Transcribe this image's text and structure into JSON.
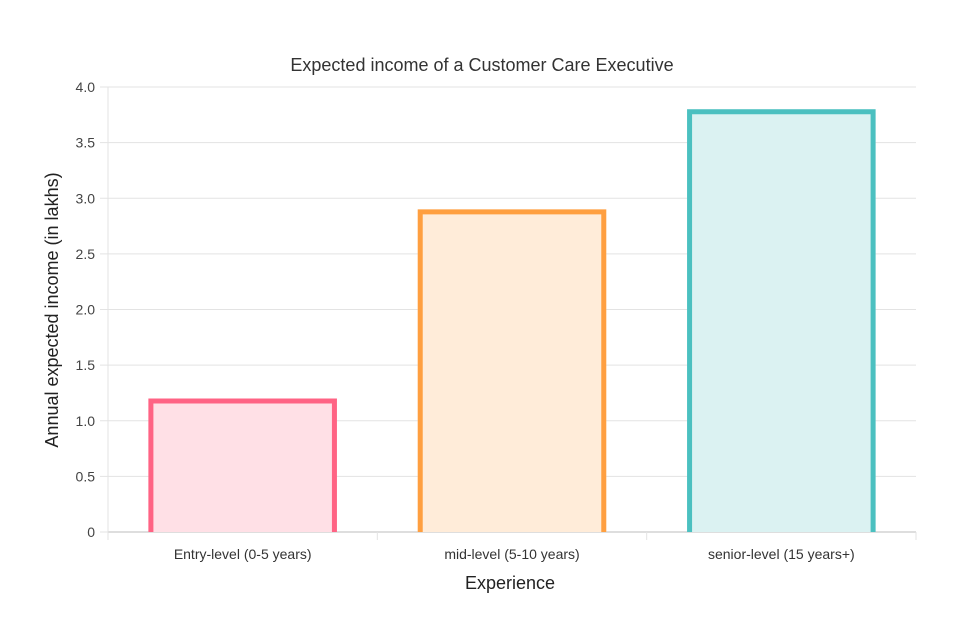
{
  "chart_data": {
    "type": "bar",
    "title": "Expected income of a Customer Care Executive",
    "xlabel": "Experience",
    "ylabel": "Annual expected income (in lakhs)",
    "categories": [
      "Entry-level (0-5 years)",
      "mid-level (5-10 years)",
      "senior-level (15 years+)"
    ],
    "values": [
      1.2,
      2.9,
      3.8
    ],
    "ylim": [
      0,
      4.0
    ],
    "yticks": [
      "0",
      "0.5",
      "1.0",
      "1.5",
      "2.0",
      "2.5",
      "3.0",
      "3.5",
      "4.0"
    ],
    "grid": true,
    "legend": "none",
    "colors": {
      "borders": [
        "#ff6384",
        "#ff9f40",
        "#4bc0c0"
      ],
      "fills": [
        "#ffe0e6",
        "#ffecd9",
        "#dbf2f2"
      ]
    }
  }
}
